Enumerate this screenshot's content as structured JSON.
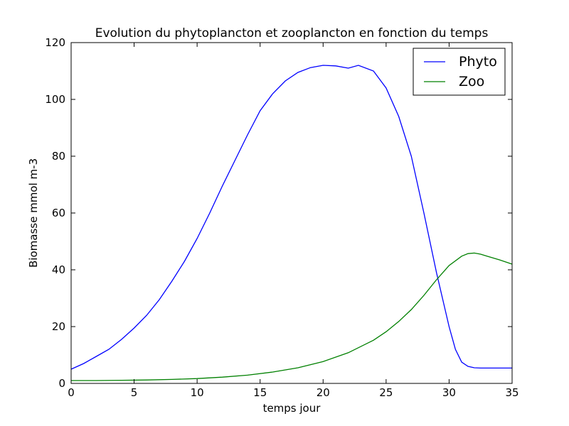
{
  "chart_data": {
    "type": "line",
    "title": "Evolution du phytoplancton et zooplancton en fonction du temps",
    "xlabel": "temps jour",
    "ylabel": "Biomasse mmol m-3",
    "xlim": [
      0,
      35
    ],
    "ylim": [
      0,
      120
    ],
    "xticks": [
      0,
      5,
      10,
      15,
      20,
      25,
      30,
      35
    ],
    "yticks": [
      0,
      20,
      40,
      60,
      80,
      100,
      120
    ],
    "grid": false,
    "legend_position": "top-right",
    "series": [
      {
        "name": "Phyto",
        "color": "#0000ff",
        "x": [
          0,
          1,
          2,
          3,
          4,
          5,
          6,
          7,
          8,
          9,
          10,
          11,
          12,
          13,
          14,
          15,
          16,
          17,
          18,
          19,
          20,
          21,
          22,
          22.8,
          24,
          25,
          26,
          27,
          28,
          29,
          30,
          30.5,
          31,
          31.5,
          32,
          32.5,
          33,
          34,
          35
        ],
        "y": [
          5,
          7,
          9.5,
          12,
          15.5,
          19.5,
          24,
          29.5,
          36,
          43,
          51,
          60,
          69.5,
          78.5,
          87.5,
          96,
          102,
          106.5,
          109.5,
          111.2,
          112,
          111.8,
          111,
          112,
          110,
          104,
          94,
          80,
          60,
          39,
          20,
          12,
          7.5,
          6,
          5.5,
          5.4,
          5.4,
          5.4,
          5.4
        ]
      },
      {
        "name": "Zoo",
        "color": "#008000",
        "x": [
          0,
          2,
          4,
          6,
          8,
          10,
          12,
          14,
          16,
          18,
          20,
          22,
          24,
          25,
          26,
          27,
          28,
          29,
          30,
          31,
          31.5,
          32,
          32.5,
          33,
          34,
          35
        ],
        "y": [
          1,
          1,
          1.1,
          1.2,
          1.4,
          1.7,
          2.2,
          2.9,
          4,
          5.5,
          7.7,
          10.8,
          15.2,
          18.2,
          21.8,
          26,
          31,
          36.5,
          41.5,
          44.8,
          45.7,
          45.9,
          45.5,
          44.8,
          43.5,
          42
        ]
      }
    ]
  }
}
